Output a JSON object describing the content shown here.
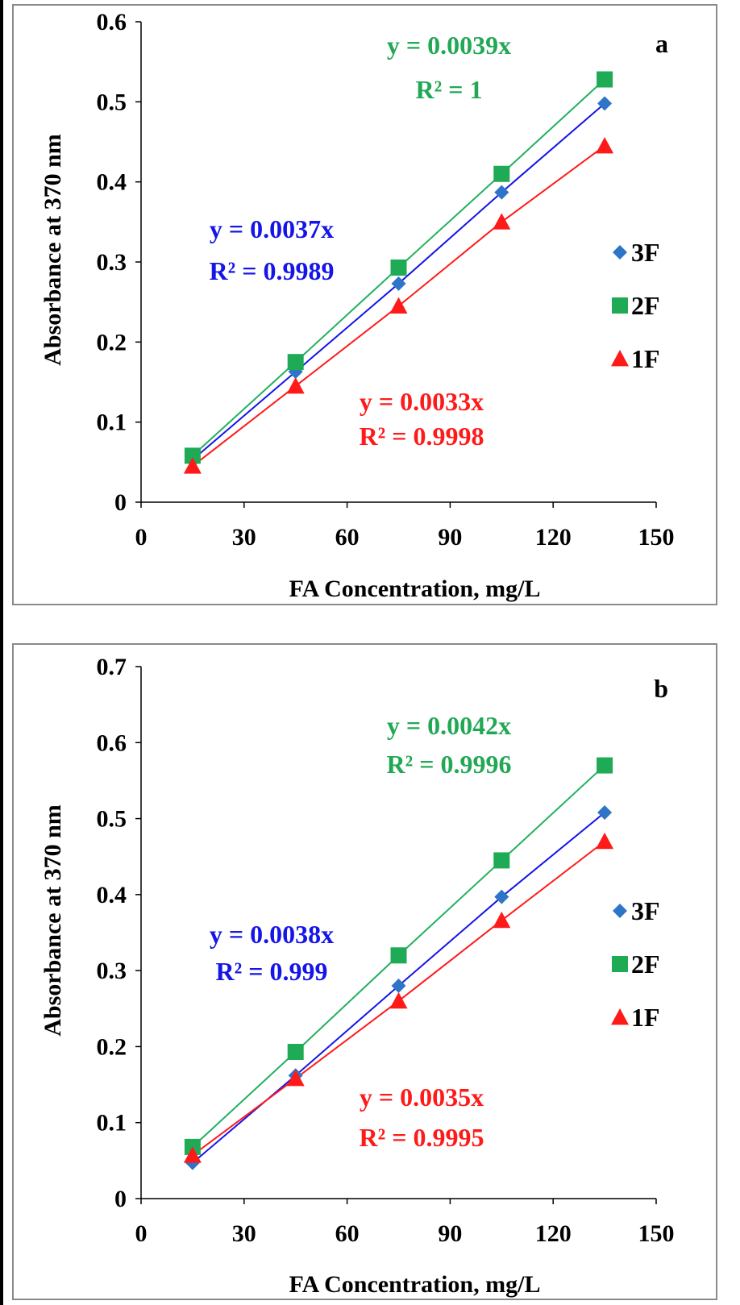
{
  "chart_data": [
    {
      "type": "scatter",
      "panel_label": "a",
      "xlabel": "FA Concentration, mg/L",
      "ylabel": "Absorbance at 370 nm",
      "xlim": [
        0,
        150
      ],
      "ylim": [
        0,
        0.6
      ],
      "x_ticks": [
        0,
        30,
        60,
        90,
        120,
        150
      ],
      "y_ticks": [
        0,
        0.1,
        0.2,
        0.3,
        0.4,
        0.5,
        0.6
      ],
      "x_tick_labels": [
        "0",
        "30",
        "60",
        "90",
        "120",
        "150"
      ],
      "y_tick_labels": [
        "0",
        "0.1",
        "0.2",
        "0.3",
        "0.4",
        "0.5",
        "0.6"
      ],
      "grid": false,
      "legend_position": "right",
      "x": [
        15,
        45,
        75,
        105,
        135
      ],
      "series": [
        {
          "name": "3F",
          "marker": "diamond",
          "color": "#2E75C8",
          "line_color": "#1515E8",
          "values": [
            0.053,
            0.163,
            0.273,
            0.387,
            0.498
          ],
          "trend_slope": 0.0037
        },
        {
          "name": "2F",
          "marker": "square",
          "color": "#1FAA55",
          "line_color": "#22B060",
          "values": [
            0.058,
            0.175,
            0.293,
            0.41,
            0.528
          ],
          "trend_slope": 0.0039
        },
        {
          "name": "1F",
          "marker": "triangle",
          "color": "#FF1A1A",
          "line_color": "#FF1A1A",
          "values": [
            0.045,
            0.145,
            0.245,
            0.35,
            0.445
          ],
          "trend_slope": 0.0033
        }
      ],
      "annotations": [
        {
          "series": "2F",
          "equation": "y = 0.0039x",
          "r2": "R² = 1",
          "color": "#22A855"
        },
        {
          "series": "3F",
          "equation": "y = 0.0037x",
          "r2": "R² = 0.9989",
          "color": "#1515E8"
        },
        {
          "series": "1F",
          "equation": "y = 0.0033x",
          "r2": "R² = 0.9998",
          "color": "#FF1A1A"
        }
      ]
    },
    {
      "type": "scatter",
      "panel_label": "b",
      "xlabel": "FA Concentration, mg/L",
      "ylabel": "Absorbance at 370 nm",
      "xlim": [
        0,
        150
      ],
      "ylim": [
        0,
        0.7
      ],
      "x_ticks": [
        0,
        30,
        60,
        90,
        120,
        150
      ],
      "y_ticks": [
        0,
        0.1,
        0.2,
        0.3,
        0.4,
        0.5,
        0.6,
        0.7
      ],
      "x_tick_labels": [
        "0",
        "30",
        "60",
        "90",
        "120",
        "150"
      ],
      "y_tick_labels": [
        "0",
        "0.1",
        "0.2",
        "0.3",
        "0.4",
        "0.5",
        "0.6",
        "0.7"
      ],
      "grid": false,
      "legend_position": "right",
      "x": [
        15,
        45,
        75,
        105,
        135
      ],
      "series": [
        {
          "name": "3F",
          "marker": "diamond",
          "color": "#2E75C8",
          "line_color": "#1515E8",
          "values": [
            0.047,
            0.162,
            0.28,
            0.397,
            0.508
          ],
          "trend_slope": 0.0038
        },
        {
          "name": "2F",
          "marker": "square",
          "color": "#1FAA55",
          "line_color": "#22B060",
          "values": [
            0.068,
            0.193,
            0.32,
            0.445,
            0.57
          ],
          "trend_slope": 0.0042
        },
        {
          "name": "1F",
          "marker": "triangle",
          "color": "#FF1A1A",
          "line_color": "#FF1A1A",
          "values": [
            0.057,
            0.158,
            0.26,
            0.366,
            0.47
          ],
          "trend_slope": 0.0035
        }
      ],
      "annotations": [
        {
          "series": "2F",
          "equation": "y = 0.0042x",
          "r2": "R² = 0.9996",
          "color": "#22A855"
        },
        {
          "series": "3F",
          "equation": "y = 0.0038x",
          "r2": "R² = 0.999",
          "color": "#1515E8"
        },
        {
          "series": "1F",
          "equation": "y = 0.0035x",
          "r2": "R² = 0.9995",
          "color": "#FF1A1A"
        }
      ]
    }
  ]
}
